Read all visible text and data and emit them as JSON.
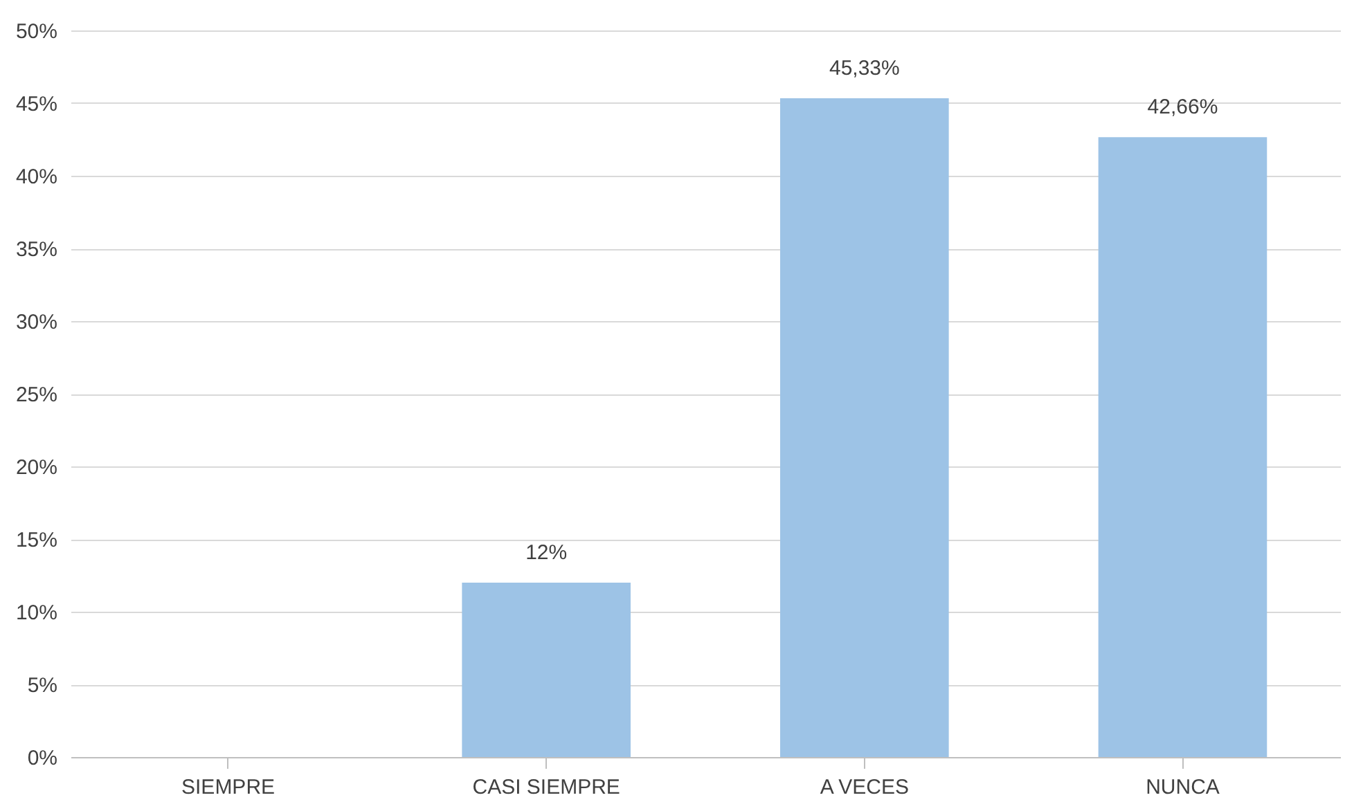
{
  "chart_data": {
    "type": "bar",
    "categories": [
      "SIEMPRE",
      "CASI SIEMPRE",
      "A VECES",
      "NUNCA"
    ],
    "values": [
      0,
      12,
      45.33,
      42.66
    ],
    "color": "#9dc3e6",
    "value_labels": [
      null,
      "12%",
      "45,33%",
      "42,66%"
    ],
    "ylim": [
      0,
      50
    ],
    "yticks": [
      {
        "value": 0,
        "label": "0%"
      },
      {
        "value": 5,
        "label": "5%"
      },
      {
        "value": 10,
        "label": "10%"
      },
      {
        "value": 15,
        "label": "15%"
      },
      {
        "value": 20,
        "label": "20%"
      },
      {
        "value": 25,
        "label": "25%"
      },
      {
        "value": 30,
        "label": "30%"
      },
      {
        "value": 35,
        "label": "35%"
      },
      {
        "value": 40,
        "label": "40%"
      },
      {
        "value": 45,
        "label": "45%"
      },
      {
        "value": 50,
        "label": "50%"
      }
    ],
    "grid": "y"
  }
}
